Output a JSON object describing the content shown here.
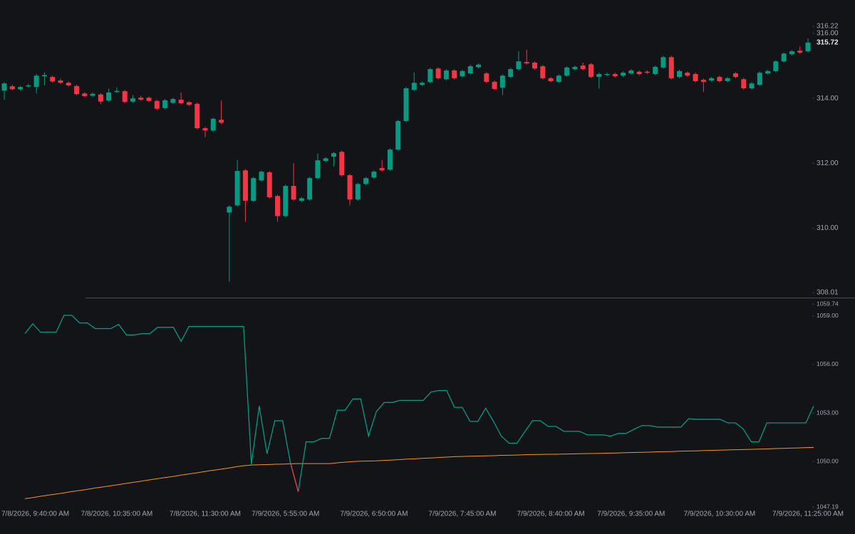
{
  "chart_data": [
    {
      "type": "candlestick",
      "up_color": "#089981",
      "down_color": "#f23645",
      "ylim": [
        308.01,
        316.22
      ],
      "yticks": [
        316.22,
        {
          "value": 316,
          "label": "316.00"
        },
        {
          "value": 314,
          "label": "314.00"
        },
        {
          "value": 312,
          "label": "312.00"
        },
        {
          "value": 310,
          "label": "310.00"
        },
        308.01
      ],
      "last_price": 315.72,
      "categories": [
        null,
        null,
        null,
        "7/8/2026, 9:40:00 AM",
        null,
        null,
        null,
        null,
        null,
        null,
        null,
        null,
        null,
        null,
        "7/8/2026, 10:35:00 AM",
        null,
        null,
        null,
        null,
        null,
        null,
        null,
        null,
        null,
        null,
        "7/8/2026, 11:30:00 AM",
        null,
        null,
        null,
        null,
        null,
        null,
        null,
        null,
        null,
        "7/9/2026, 5:55:00 AM",
        null,
        null,
        null,
        null,
        null,
        null,
        null,
        null,
        null,
        null,
        "7/9/2026, 6:50:00 AM",
        null,
        null,
        null,
        null,
        null,
        null,
        null,
        null,
        null,
        null,
        "7/9/2026, 7:45:00 AM",
        null,
        null,
        null,
        null,
        null,
        null,
        null,
        null,
        null,
        null,
        "7/9/2026, 8:40:00 AM",
        null,
        null,
        null,
        null,
        null,
        null,
        null,
        null,
        null,
        "7/9/2026, 9:35:00 AM",
        null,
        null,
        null,
        null,
        null,
        null,
        null,
        null,
        null,
        null,
        "7/9/2026, 10:30:00 AM",
        null,
        null,
        null,
        null,
        null,
        null,
        null,
        null,
        null,
        null,
        "7/9/2026, 11:25:00 AM"
      ],
      "open": [
        314.24,
        314.37,
        314.28,
        314.37,
        314.35,
        314.68,
        314.66,
        314.55,
        314.48,
        314.38,
        314.15,
        314.08,
        314.12,
        313.93,
        314.2,
        314.22,
        313.9,
        314.02,
        314.02,
        313.92,
        313.7,
        313.86,
        313.96,
        313.88,
        313.83,
        313.08,
        313.01,
        313.34,
        310.48,
        310.7,
        311.78,
        310.84,
        311.47,
        311.72,
        310.99,
        310.37,
        311.3,
        310.84,
        310.88,
        311.54,
        312.07,
        312.2,
        312.35,
        311.63,
        310.88,
        311.36,
        311.56,
        311.85,
        311.8,
        312.42,
        313.3,
        314.26,
        314.42,
        314.5,
        314.92,
        314.59,
        314.86,
        314.68,
        314.77,
        314.96,
        314.77,
        314.51,
        314.33,
        314.66,
        314.9,
        315.12,
        315.1,
        314.99,
        314.62,
        314.51,
        314.7,
        314.9,
        315.01,
        315.05,
        314.66,
        314.72,
        314.75,
        314.7,
        314.77,
        314.82,
        314.82,
        314.75,
        314.95,
        315.27,
        314.66,
        314.79,
        314.75,
        314.57,
        314.55,
        314.66,
        314.53,
        314.77,
        314.59,
        314.31,
        314.42,
        314.77,
        314.84,
        315.14,
        315.36,
        315.47,
        315.45
      ],
      "high": [
        314.5,
        314.42,
        314.38,
        314.45,
        314.75,
        314.8,
        314.7,
        314.6,
        314.52,
        314.42,
        314.19,
        314.18,
        314.16,
        314.3,
        314.34,
        314.26,
        314.1,
        314.08,
        314.06,
        313.96,
        313.98,
        314.02,
        314.18,
        313.92,
        313.87,
        313.12,
        313.4,
        313.93,
        310.7,
        312.1,
        311.82,
        311.58,
        311.78,
        311.76,
        311.03,
        311.34,
        312.0,
        310.96,
        311.58,
        312.3,
        312.19,
        312.35,
        312.39,
        311.67,
        311.4,
        311.58,
        311.78,
        312.1,
        312.46,
        313.34,
        314.35,
        314.8,
        314.52,
        314.94,
        314.96,
        314.9,
        314.9,
        314.88,
        315.03,
        315.08,
        314.81,
        314.55,
        314.74,
        314.94,
        315.45,
        315.5,
        315.14,
        315.03,
        314.66,
        314.74,
        314.99,
        315.01,
        315.1,
        315.09,
        314.79,
        314.79,
        314.79,
        314.83,
        314.9,
        314.86,
        314.86,
        315.01,
        315.31,
        315.31,
        314.88,
        314.83,
        314.79,
        314.61,
        314.66,
        314.7,
        314.66,
        314.81,
        314.63,
        314.5,
        314.83,
        314.88,
        315.18,
        315.42,
        315.49,
        315.6,
        315.85
      ],
      "low": [
        313.96,
        314.25,
        314.24,
        314.33,
        314.15,
        314.4,
        314.48,
        314.44,
        314.36,
        314.1,
        314.03,
        314.04,
        313.82,
        313.89,
        314.16,
        313.85,
        313.86,
        313.92,
        313.88,
        313.64,
        313.66,
        313.82,
        313.81,
        313.76,
        313.04,
        312.8,
        312.97,
        313.21,
        308.35,
        310.66,
        310.2,
        310.8,
        311.43,
        310.91,
        310.2,
        310.33,
        310.84,
        310.8,
        310.84,
        311.5,
        312.03,
        311.9,
        311.59,
        310.7,
        310.84,
        311.32,
        311.52,
        311.74,
        311.76,
        312.38,
        313.26,
        314.22,
        314.38,
        314.46,
        314.58,
        314.55,
        314.58,
        314.64,
        314.73,
        314.92,
        314.47,
        314.25,
        314.1,
        314.62,
        314.86,
        315.04,
        314.88,
        314.58,
        314.49,
        314.47,
        314.66,
        314.86,
        314.86,
        314.62,
        314.3,
        314.68,
        314.64,
        314.66,
        314.73,
        314.71,
        314.75,
        314.71,
        314.91,
        314.58,
        314.62,
        314.66,
        314.49,
        314.2,
        314.51,
        314.49,
        314.49,
        314.62,
        314.27,
        314.27,
        314.38,
        314.73,
        314.8,
        315.1,
        315.32,
        315.37,
        315.41
      ],
      "close": [
        314.46,
        314.28,
        314.35,
        314.4,
        314.7,
        314.72,
        314.52,
        314.48,
        314.4,
        314.13,
        314.07,
        314.14,
        313.9,
        314.18,
        314.23,
        313.89,
        314.0,
        313.96,
        313.92,
        313.68,
        313.94,
        313.98,
        313.85,
        313.8,
        313.08,
        313.01,
        313.37,
        313.25,
        310.66,
        311.76,
        310.84,
        311.54,
        311.74,
        310.95,
        310.37,
        311.3,
        310.88,
        310.92,
        311.54,
        312.09,
        312.15,
        312.31,
        311.63,
        310.88,
        311.36,
        311.54,
        311.74,
        311.78,
        312.42,
        313.3,
        314.31,
        314.48,
        314.48,
        314.9,
        314.62,
        314.86,
        314.62,
        314.84,
        314.99,
        315.04,
        314.51,
        314.29,
        314.7,
        314.9,
        315.14,
        315.08,
        314.92,
        314.62,
        314.53,
        314.7,
        314.95,
        314.97,
        314.9,
        314.66,
        314.75,
        314.75,
        314.68,
        314.79,
        314.86,
        314.75,
        314.79,
        314.97,
        315.27,
        314.62,
        314.84,
        314.7,
        314.53,
        314.51,
        314.62,
        314.53,
        314.62,
        314.66,
        314.31,
        314.46,
        314.79,
        314.84,
        315.14,
        315.38,
        315.45,
        315.41,
        315.72
      ]
    },
    {
      "type": "line",
      "ylim": [
        1047.19,
        1059.74
      ],
      "yticks": [
        1059.74,
        {
          "value": 1059,
          "label": "1059.00"
        },
        {
          "value": 1056,
          "label": "1056.00"
        },
        {
          "value": 1053,
          "label": "1053.00"
        },
        {
          "value": 1050,
          "label": "1050.00"
        },
        1047.19
      ],
      "series": [
        {
          "color": "#089981",
          "below_color": "#f23645",
          "values": [
            1057.91,
            1058.52,
            1058.0,
            1058.0,
            1058.0,
            1059.04,
            1059.04,
            1058.57,
            1058.57,
            1058.22,
            1058.22,
            1058.22,
            1058.48,
            1057.83,
            1057.83,
            1057.91,
            1057.91,
            1058.3,
            1058.3,
            1058.3,
            1057.43,
            1058.35,
            1058.35,
            1058.35,
            1058.35,
            1058.35,
            1058.35,
            1058.35,
            1058.35,
            1049.83,
            1053.43,
            1050.48,
            1052.52,
            1052.52,
            1049.91,
            1048.13,
            1051.22,
            1051.22,
            1051.43,
            1051.43,
            1053.17,
            1053.17,
            1053.87,
            1053.87,
            1051.57,
            1053.09,
            1053.65,
            1053.65,
            1053.78,
            1053.78,
            1053.78,
            1053.78,
            1054.3,
            1054.39,
            1054.39,
            1053.35,
            1053.35,
            1052.48,
            1052.48,
            1053.3,
            1052.48,
            1051.57,
            1051.13,
            1051.13,
            1051.83,
            1052.52,
            1052.52,
            1052.17,
            1052.17,
            1051.87,
            1051.87,
            1051.87,
            1051.65,
            1051.65,
            1051.65,
            1051.57,
            1051.74,
            1051.74,
            1052.0,
            1052.22,
            1052.22,
            1052.13,
            1052.13,
            1052.13,
            1052.13,
            1052.65,
            1052.61,
            1052.61,
            1052.61,
            1052.61,
            1052.39,
            1052.39,
            1052.0,
            1051.22,
            1051.22,
            1052.39,
            1052.39,
            1052.39,
            1052.39,
            1052.39,
            1052.39,
            1053.43
          ]
        },
        {
          "color": "#f7931a",
          "values": [
            1047.7,
            1047.77,
            1047.85,
            1047.92,
            1047.99,
            1048.06,
            1048.14,
            1048.21,
            1048.28,
            1048.36,
            1048.43,
            1048.5,
            1048.57,
            1048.65,
            1048.72,
            1048.79,
            1048.87,
            1048.94,
            1049.01,
            1049.08,
            1049.16,
            1049.23,
            1049.3,
            1049.38,
            1049.45,
            1049.52,
            1049.59,
            1049.67,
            1049.74,
            1049.78,
            1049.8,
            1049.81,
            1049.83,
            1049.84,
            1049.86,
            1049.87,
            1049.87,
            1049.87,
            1049.87,
            1049.87,
            1049.92,
            1049.96,
            1050.0,
            1050.02,
            1050.03,
            1050.04,
            1050.07,
            1050.09,
            1050.12,
            1050.15,
            1050.17,
            1050.2,
            1050.22,
            1050.25,
            1050.27,
            1050.3,
            1050.31,
            1050.33,
            1050.34,
            1050.35,
            1050.36,
            1050.38,
            1050.39,
            1050.4,
            1050.42,
            1050.43,
            1050.44,
            1050.45,
            1050.45,
            1050.46,
            1050.47,
            1050.48,
            1050.49,
            1050.5,
            1050.51,
            1050.52,
            1050.53,
            1050.55,
            1050.56,
            1050.57,
            1050.58,
            1050.6,
            1050.61,
            1050.62,
            1050.64,
            1050.65,
            1050.66,
            1050.68,
            1050.69,
            1050.7,
            1050.72,
            1050.73,
            1050.74,
            1050.75,
            1050.77,
            1050.78,
            1050.8,
            1050.81,
            1050.83,
            1050.84,
            1050.86,
            1050.87
          ]
        }
      ]
    }
  ]
}
